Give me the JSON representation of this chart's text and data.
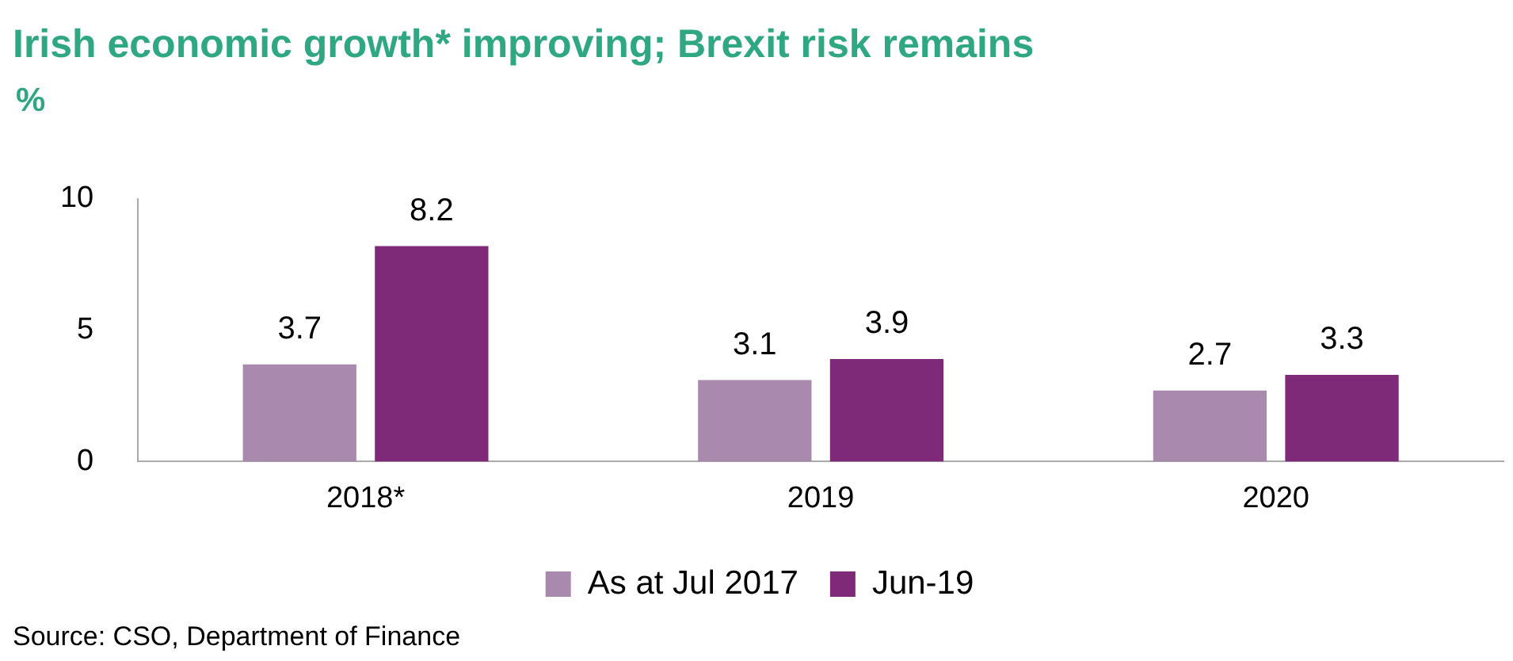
{
  "chart_data": {
    "type": "bar",
    "title": "Irish economic growth* improving; Brexit risk remains",
    "ylabel": "%",
    "categories": [
      "2018*",
      "2019",
      "2020"
    ],
    "series": [
      {
        "name": "As at Jul 2017",
        "color": "#a98aae",
        "values": [
          3.7,
          3.1,
          2.7
        ]
      },
      {
        "name": "Jun-19",
        "color": "#7f2a79",
        "values": [
          8.2,
          3.9,
          3.3
        ]
      }
    ],
    "ylim": [
      0,
      10
    ],
    "yticks": [
      0,
      5,
      10
    ],
    "grid": false,
    "legend": "bottom",
    "data_labels": true,
    "annotations": [
      "Source: CSO, Department of Finance"
    ]
  }
}
